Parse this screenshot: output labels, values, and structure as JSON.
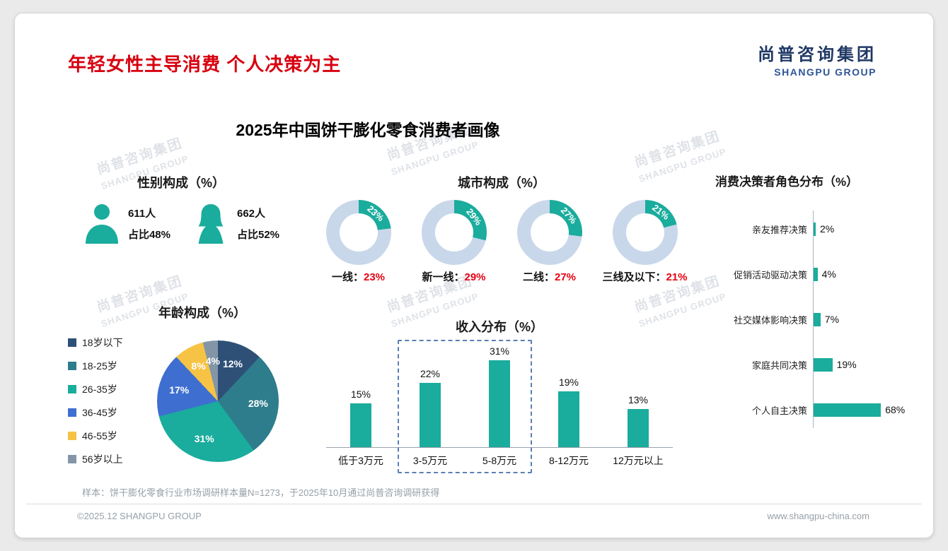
{
  "page": {
    "title": "年轻女性主导消费 个人决策为主",
    "logo_cn": "尚普咨询集团",
    "logo_en": "SHANGPU GROUP",
    "main_title": "2025年中国饼干膨化零食消费者画像",
    "watermark_cn": "尚普咨询集团",
    "watermark_en": "SHANGPU GROUP",
    "footnote": "样本：饼干膨化零食行业市场调研样本量N=1273，于2025年10月通过尚普咨询调研获得",
    "footer_left": "©2025.12 SHANGPU GROUP",
    "footer_right": "www.shangpu-china.com"
  },
  "colors": {
    "accent_red": "#D7000F",
    "percent_red": "#E60012",
    "brand_teal": "#1AAC9C",
    "brand_navy": "#1F3864",
    "donut_remainder": "#C9D7EA"
  },
  "chart_data": [
    {
      "id": "gender",
      "type": "pictogram",
      "title": "性别构成（%）",
      "items": [
        {
          "icon": "male-person-icon",
          "count": "611人",
          "share": "占比48%"
        },
        {
          "icon": "female-person-icon",
          "count": "662人",
          "share": "占比52%"
        }
      ]
    },
    {
      "id": "city",
      "type": "pie",
      "variant": "donut-multiples",
      "title": "城市构成（%）",
      "items": [
        {
          "label": "一线",
          "value": 23
        },
        {
          "label": "新一线",
          "value": 29
        },
        {
          "label": "二线",
          "value": 27
        },
        {
          "label": "三线及以下",
          "value": 21
        }
      ],
      "value_suffix": "%"
    },
    {
      "id": "decision",
      "type": "bar",
      "orientation": "horizontal",
      "title": "消费决策者角色分布（%）",
      "categories": [
        "亲友推荐决策",
        "促销活动驱动决策",
        "社交媒体影响决策",
        "家庭共同决策",
        "个人自主决策"
      ],
      "values": [
        2,
        4,
        7,
        19,
        68
      ],
      "value_suffix": "%",
      "xlim": [
        0,
        70
      ]
    },
    {
      "id": "age",
      "type": "pie",
      "title": "年龄构成（%）",
      "categories": [
        "18岁以下",
        "18-25岁",
        "26-35岁",
        "36-45岁",
        "46-55岁",
        "56岁以上"
      ],
      "values": [
        12,
        28,
        31,
        17,
        8,
        4
      ],
      "colors": [
        "#2E5077",
        "#2E7D8C",
        "#1AAC9C",
        "#3E6ED0",
        "#F6C344",
        "#8495A7"
      ],
      "legend_position": "left",
      "value_suffix": "%"
    },
    {
      "id": "income",
      "type": "bar",
      "orientation": "vertical",
      "title": "收入分布（%）",
      "categories": [
        "低于3万元",
        "3-5万元",
        "5-8万元",
        "8-12万元",
        "12万元以上"
      ],
      "values": [
        15,
        22,
        31,
        19,
        13
      ],
      "value_suffix": "%",
      "ylim": [
        0,
        35
      ],
      "highlight_categories": [
        "3-5万元",
        "5-8万元"
      ],
      "highlight_range": [
        1,
        2
      ]
    }
  ]
}
